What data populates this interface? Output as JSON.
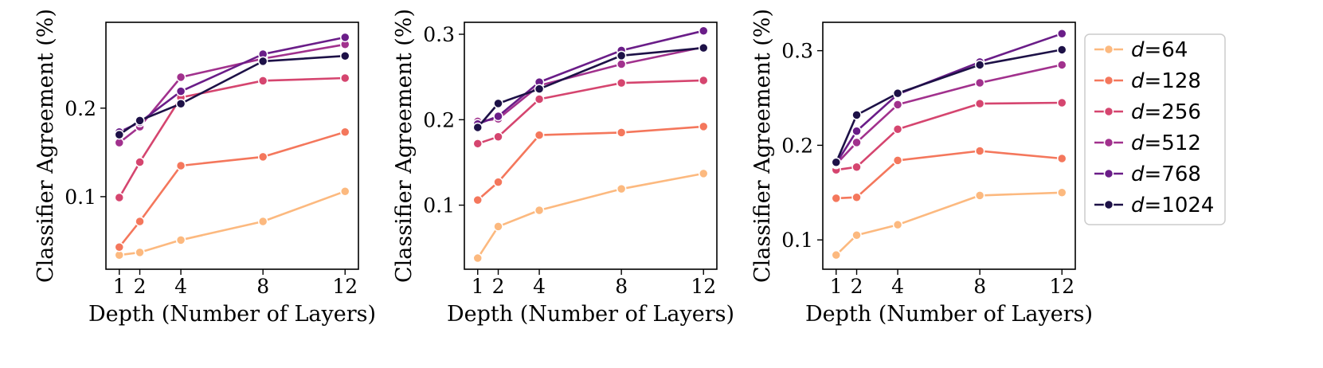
{
  "legend": {
    "items": [
      {
        "prefix": "d",
        "value": "=64",
        "color": "#fcb97f"
      },
      {
        "prefix": "d",
        "value": "=128",
        "color": "#f4775c"
      },
      {
        "prefix": "d",
        "value": "=256",
        "color": "#d5456f"
      },
      {
        "prefix": "d",
        "value": "=512",
        "color": "#a1318d"
      },
      {
        "prefix": "d",
        "value": "=768",
        "color": "#6a1d88"
      },
      {
        "prefix": "d",
        "value": "=1024",
        "color": "#1d1147"
      }
    ]
  },
  "chart_data": [
    {
      "type": "line",
      "xlabel": "Depth (Number of Layers)",
      "ylabel": "Classifier Agreement (%)",
      "x": [
        1,
        2,
        4,
        8,
        12
      ],
      "x_ticks": [
        "1",
        "2",
        "4",
        "8",
        "12"
      ],
      "xlim": [
        0.35,
        12.65
      ],
      "ylim": [
        0.018,
        0.297
      ],
      "y_ticks": [
        0.1,
        0.2
      ],
      "y_tick_labels": [
        "0.1",
        "0.2"
      ],
      "series": [
        {
          "name": "d=64",
          "values": [
            0.034,
            0.037,
            0.051,
            0.072,
            0.106
          ]
        },
        {
          "name": "d=128",
          "values": [
            0.043,
            0.072,
            0.135,
            0.145,
            0.173
          ]
        },
        {
          "name": "d=256",
          "values": [
            0.099,
            0.139,
            0.212,
            0.231,
            0.234
          ]
        },
        {
          "name": "d=512",
          "values": [
            0.161,
            0.179,
            0.235,
            0.256,
            0.272
          ]
        },
        {
          "name": "d=768",
          "values": [
            0.173,
            0.184,
            0.219,
            0.261,
            0.28
          ]
        },
        {
          "name": "d=1024",
          "values": [
            0.17,
            0.186,
            0.205,
            0.253,
            0.259
          ]
        }
      ]
    },
    {
      "type": "line",
      "xlabel": "Depth (Number of Layers)",
      "ylabel": "Classifier Agreement (%)",
      "x": [
        1,
        2,
        4,
        8,
        12
      ],
      "x_ticks": [
        "1",
        "2",
        "4",
        "8",
        "12"
      ],
      "xlim": [
        0.35,
        12.65
      ],
      "ylim": [
        0.025,
        0.314
      ],
      "y_ticks": [
        0.1,
        0.2,
        0.3
      ],
      "y_tick_labels": [
        "0.1",
        "0.2",
        "0.3"
      ],
      "series": [
        {
          "name": "d=64",
          "values": [
            0.038,
            0.075,
            0.094,
            0.119,
            0.137
          ]
        },
        {
          "name": "d=128",
          "values": [
            0.106,
            0.127,
            0.182,
            0.185,
            0.192
          ]
        },
        {
          "name": "d=256",
          "values": [
            0.172,
            0.18,
            0.224,
            0.243,
            0.246
          ]
        },
        {
          "name": "d=512",
          "values": [
            0.198,
            0.201,
            0.24,
            0.265,
            0.285
          ]
        },
        {
          "name": "d=768",
          "values": [
            0.195,
            0.204,
            0.244,
            0.281,
            0.304
          ]
        },
        {
          "name": "d=1024",
          "values": [
            0.191,
            0.219,
            0.236,
            0.275,
            0.284
          ]
        }
      ]
    },
    {
      "type": "line",
      "xlabel": "Depth (Number of Layers)",
      "ylabel": "Classifier Agreement (%)",
      "x": [
        1,
        2,
        4,
        8,
        12
      ],
      "x_ticks": [
        "1",
        "2",
        "4",
        "8",
        "12"
      ],
      "xlim": [
        0.35,
        12.65
      ],
      "ylim": [
        0.069,
        0.33
      ],
      "y_ticks": [
        0.1,
        0.2,
        0.3
      ],
      "y_tick_labels": [
        "0.1",
        "0.2",
        "0.3"
      ],
      "series": [
        {
          "name": "d=64",
          "values": [
            0.084,
            0.105,
            0.116,
            0.147,
            0.15
          ]
        },
        {
          "name": "d=128",
          "values": [
            0.144,
            0.145,
            0.184,
            0.194,
            0.186
          ]
        },
        {
          "name": "d=256",
          "values": [
            0.174,
            0.177,
            0.217,
            0.244,
            0.245
          ]
        },
        {
          "name": "d=512",
          "values": [
            0.18,
            0.203,
            0.243,
            0.266,
            0.285
          ]
        },
        {
          "name": "d=768",
          "values": [
            0.181,
            0.215,
            0.254,
            0.288,
            0.318
          ]
        },
        {
          "name": "d=1024",
          "values": [
            0.182,
            0.232,
            0.255,
            0.285,
            0.301
          ]
        }
      ]
    }
  ]
}
